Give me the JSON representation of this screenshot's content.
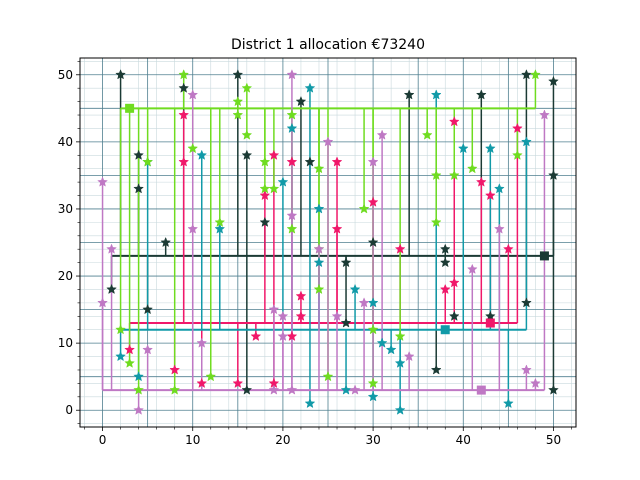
{
  "chart_data": {
    "type": "scatter",
    "title": "District 1 allocation €73240",
    "xlabel": "",
    "ylabel": "",
    "xlim": [
      -2.5,
      52.5
    ],
    "ylim": [
      -2.5,
      52.5
    ],
    "xticks": [
      0,
      10,
      20,
      30,
      40,
      50
    ],
    "yticks": [
      0,
      10,
      20,
      30,
      40,
      50
    ],
    "grid": "major and minor",
    "legend": "none",
    "colors": {
      "major_grid": "#4f7f8f",
      "minor_grid": "#c9d9dd"
    },
    "series": [
      {
        "color": "#1b3a34",
        "hub": [
          49,
          23
        ],
        "points": [
          [
            2,
            50
          ],
          [
            1,
            18
          ],
          [
            4,
            38
          ],
          [
            4,
            33
          ],
          [
            5,
            15
          ],
          [
            7,
            25
          ],
          [
            9,
            48
          ],
          [
            15,
            50
          ],
          [
            16,
            38
          ],
          [
            16,
            3
          ],
          [
            18,
            28
          ],
          [
            22,
            46
          ],
          [
            23,
            37
          ],
          [
            27,
            22
          ],
          [
            27,
            13
          ],
          [
            30,
            25
          ],
          [
            34,
            47
          ],
          [
            37,
            6
          ],
          [
            38,
            24
          ],
          [
            38,
            22
          ],
          [
            39,
            14
          ],
          [
            42,
            47
          ],
          [
            43,
            14
          ],
          [
            47,
            50
          ],
          [
            47,
            16
          ],
          [
            50,
            49
          ],
          [
            50,
            35
          ],
          [
            50,
            3
          ]
        ]
      },
      {
        "color": "#f0186a",
        "hub": [
          43,
          13
        ],
        "points": [
          [
            3,
            9
          ],
          [
            8,
            6
          ],
          [
            9,
            44
          ],
          [
            9,
            37
          ],
          [
            11,
            4
          ],
          [
            15,
            4
          ],
          [
            17,
            11
          ],
          [
            18,
            32
          ],
          [
            19,
            38
          ],
          [
            19,
            4
          ],
          [
            21,
            11
          ],
          [
            21,
            37
          ],
          [
            22,
            17
          ],
          [
            22,
            14
          ],
          [
            26,
            37
          ],
          [
            26,
            27
          ],
          [
            30,
            31
          ],
          [
            33,
            24
          ],
          [
            38,
            18
          ],
          [
            39,
            43
          ],
          [
            39,
            19
          ],
          [
            42,
            34
          ],
          [
            43,
            32
          ],
          [
            45,
            24
          ],
          [
            46,
            42
          ]
        ]
      },
      {
        "color": "#119aa8",
        "hub": [
          38,
          12
        ],
        "points": [
          [
            2,
            8
          ],
          [
            4,
            5
          ],
          [
            5,
            37
          ],
          [
            11,
            38
          ],
          [
            13,
            27
          ],
          [
            20,
            34
          ],
          [
            21,
            42
          ],
          [
            23,
            48
          ],
          [
            23,
            1
          ],
          [
            24,
            30
          ],
          [
            24,
            22
          ],
          [
            27,
            3
          ],
          [
            28,
            18
          ],
          [
            30,
            16
          ],
          [
            30,
            2
          ],
          [
            31,
            10
          ],
          [
            32,
            9
          ],
          [
            33,
            7
          ],
          [
            33,
            0
          ],
          [
            37,
            47
          ],
          [
            40,
            39
          ],
          [
            43,
            39
          ],
          [
            44,
            33
          ],
          [
            45,
            1
          ],
          [
            47,
            40
          ]
        ]
      },
      {
        "color": "#6fdc20",
        "hub": [
          3,
          45
        ],
        "points": [
          [
            2,
            12
          ],
          [
            3,
            7
          ],
          [
            4,
            3
          ],
          [
            5,
            37
          ],
          [
            8,
            3
          ],
          [
            9,
            50
          ],
          [
            10,
            39
          ],
          [
            12,
            5
          ],
          [
            13,
            28
          ],
          [
            15,
            46
          ],
          [
            15,
            44
          ],
          [
            16,
            48
          ],
          [
            16,
            41
          ],
          [
            18,
            37
          ],
          [
            18,
            33
          ],
          [
            19,
            33
          ],
          [
            21,
            44
          ],
          [
            21,
            27
          ],
          [
            24,
            36
          ],
          [
            24,
            24
          ],
          [
            24,
            18
          ],
          [
            25,
            5
          ],
          [
            29,
            30
          ],
          [
            30,
            12
          ],
          [
            30,
            4
          ],
          [
            33,
            11
          ],
          [
            36,
            41
          ],
          [
            37,
            35
          ],
          [
            37,
            28
          ],
          [
            39,
            35
          ],
          [
            41,
            36
          ],
          [
            46,
            38
          ],
          [
            48,
            50
          ]
        ]
      },
      {
        "color": "#bf78c4",
        "hub": [
          42,
          3
        ],
        "points": [
          [
            0,
            34
          ],
          [
            0,
            16
          ],
          [
            1,
            24
          ],
          [
            4,
            0
          ],
          [
            5,
            9
          ],
          [
            10,
            47
          ],
          [
            10,
            27
          ],
          [
            11,
            10
          ],
          [
            19,
            15
          ],
          [
            19,
            3
          ],
          [
            20,
            14
          ],
          [
            20,
            11
          ],
          [
            21,
            50
          ],
          [
            21,
            29
          ],
          [
            21,
            3
          ],
          [
            24,
            24
          ],
          [
            25,
            40
          ],
          [
            26,
            14
          ],
          [
            28,
            3
          ],
          [
            29,
            16
          ],
          [
            30,
            37
          ],
          [
            31,
            41
          ],
          [
            34,
            8
          ],
          [
            41,
            21
          ],
          [
            44,
            27
          ],
          [
            47,
            6
          ],
          [
            48,
            4
          ],
          [
            49,
            44
          ]
        ]
      }
    ]
  }
}
